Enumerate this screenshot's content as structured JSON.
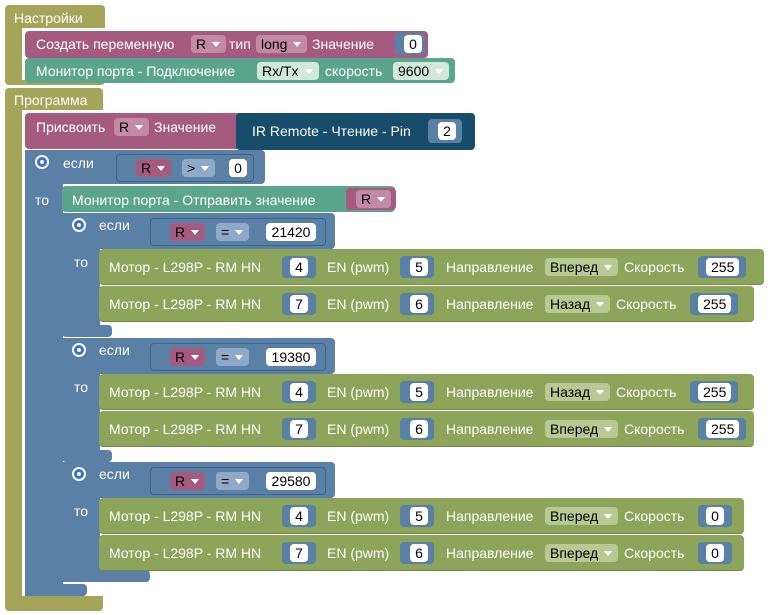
{
  "colors": {
    "setup": "#a5a55a",
    "variable": "#a55b80",
    "serial": "#5ba58c",
    "ir": "#174c6a",
    "logic": "#5b80a5",
    "motor": "#8ca55b"
  },
  "setup": {
    "title": "Настройки",
    "create_var": {
      "label": "Создать переменную",
      "var": "R",
      "type_label": "тип",
      "type": "long",
      "value_label": "Значение",
      "value": "0"
    },
    "serial_monitor": {
      "label": "Монитор порта - Подключение",
      "pins": "Rx/Tx",
      "speed_label": "скорость",
      "speed": "9600"
    }
  },
  "program": {
    "title": "Программа",
    "assign": {
      "label": "Присвоить",
      "var": "R",
      "value_label": "Значение",
      "ir_label": "IR Remote - Чтение - Pin",
      "pin": "2"
    },
    "outer_if": {
      "if_label": "если",
      "then_label": "то",
      "var": "R",
      "op": ">",
      "value": "0",
      "print_label": "Монитор порта - Отправить значение",
      "print_var": "R"
    },
    "motor_label": "Мотор - L298P - RM HN",
    "en_label": "EN (pwm)",
    "dir_label": "Направление",
    "speed_label": "Скорость",
    "if_blocks": [
      {
        "if_label": "если",
        "then_label": "то",
        "var": "R",
        "op": "=",
        "value": "21420",
        "motors": [
          {
            "pin": "4",
            "en": "5",
            "direction": "Вперед",
            "speed": "255"
          },
          {
            "pin": "7",
            "en": "6",
            "direction": "Назад",
            "speed": "255"
          }
        ]
      },
      {
        "if_label": "если",
        "then_label": "то",
        "var": "R",
        "op": "=",
        "value": "19380",
        "motors": [
          {
            "pin": "4",
            "en": "5",
            "direction": "Назад",
            "speed": "255"
          },
          {
            "pin": "7",
            "en": "6",
            "direction": "Вперед",
            "speed": "255"
          }
        ]
      },
      {
        "if_label": "если",
        "then_label": "то",
        "var": "R",
        "op": "=",
        "value": "29580",
        "motors": [
          {
            "pin": "4",
            "en": "5",
            "direction": "Вперед",
            "speed": "0"
          },
          {
            "pin": "7",
            "en": "6",
            "direction": "Вперед",
            "speed": "0"
          }
        ]
      }
    ]
  }
}
